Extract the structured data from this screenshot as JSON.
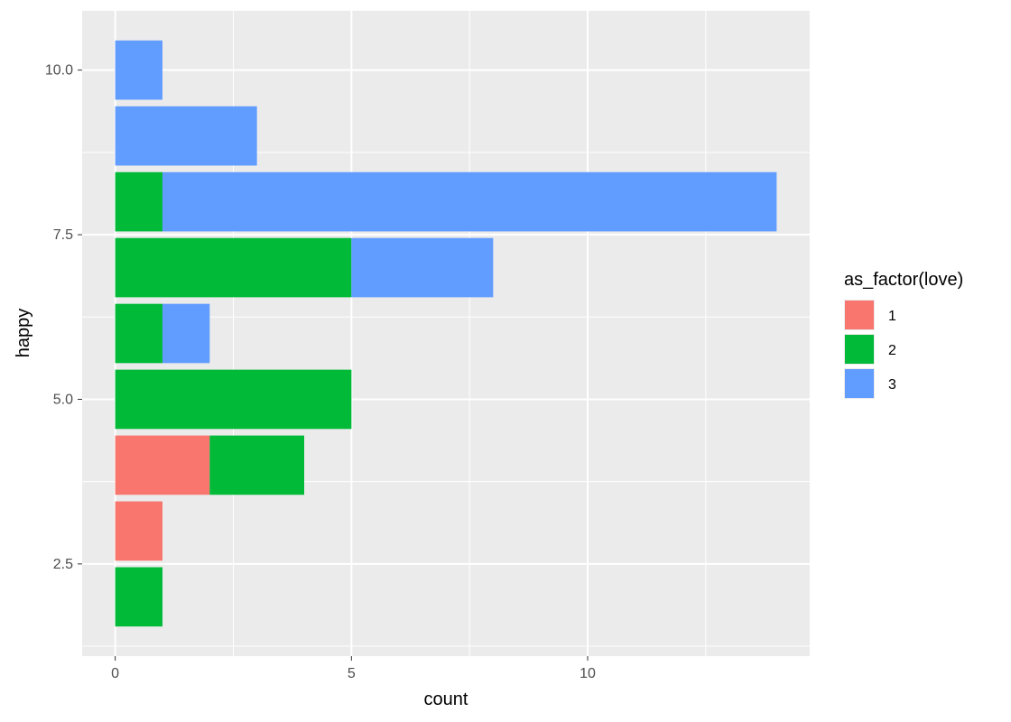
{
  "chart_data": {
    "type": "bar",
    "orientation": "horizontal",
    "stacked": true,
    "xlabel": "count",
    "ylabel": "happy",
    "xlim": [
      -0.7,
      14.7
    ],
    "ylim": [
      1.1,
      10.9
    ],
    "x_ticks": [
      0,
      5,
      10
    ],
    "x_tick_labels": [
      "0",
      "5",
      "10"
    ],
    "y_ticks": [
      2.5,
      5.0,
      7.5,
      10.0
    ],
    "y_tick_labels": [
      "2.5",
      "5.0",
      "7.5",
      "10.0"
    ],
    "grid": true,
    "legend": {
      "title": "as_factor(love)",
      "position": "right"
    },
    "categories": [
      2,
      3,
      4,
      5,
      6,
      7,
      8,
      9,
      10
    ],
    "series": [
      {
        "name": "1",
        "color": "#F8766D",
        "values": [
          0,
          1,
          2,
          0,
          0,
          0,
          0,
          0,
          0
        ]
      },
      {
        "name": "2",
        "color": "#00BA38",
        "values": [
          1,
          0,
          2,
          5,
          1,
          5,
          1,
          0,
          0
        ]
      },
      {
        "name": "3",
        "color": "#619CFF",
        "values": [
          0,
          0,
          0,
          0,
          1,
          3,
          13,
          3,
          1
        ]
      }
    ]
  }
}
